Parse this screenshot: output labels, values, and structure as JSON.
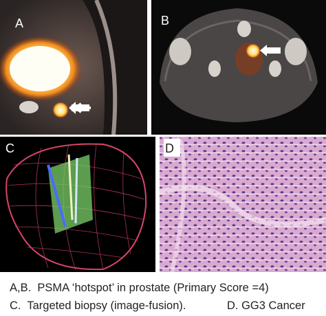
{
  "panels": [
    {
      "label": "A"
    },
    {
      "label": "B"
    },
    {
      "label": "C"
    },
    {
      "label": "D"
    }
  ],
  "caption": {
    "lines": [
      "A,B.  PSMA ‘hotspot’ in prostate (Primary Score =4)",
      "C.  Targeted biopsy (image-fusion).",
      "D. GG3 Cancer"
    ]
  }
}
